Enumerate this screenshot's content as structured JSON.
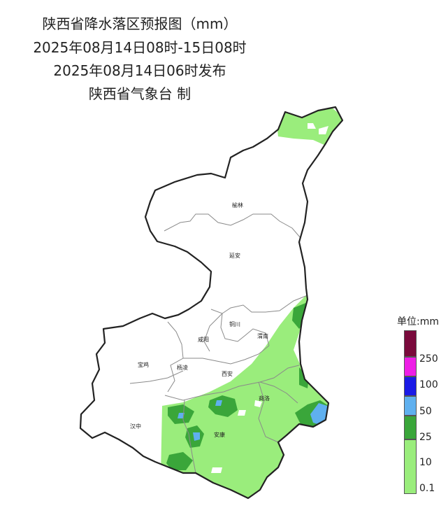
{
  "header": {
    "title": "陕西省降水落区预报图（mm）",
    "valid_period": "2025年08月14日08时-15日08时",
    "issue_time": "2025年08月14日06时发布",
    "issuer": "陕西省气象台 制"
  },
  "map": {
    "cities": [
      {
        "name": "榆林"
      },
      {
        "name": "延安"
      },
      {
        "name": "铜川"
      },
      {
        "name": "渭南"
      },
      {
        "name": "咸阳"
      },
      {
        "name": "宝鸡"
      },
      {
        "name": "杨凌"
      },
      {
        "name": "西安"
      },
      {
        "name": "商洛"
      },
      {
        "name": "汉中"
      },
      {
        "name": "安康"
      }
    ]
  },
  "legend": {
    "title": "单位:mm",
    "items": [
      {
        "label": "",
        "color": "#7a0a3c"
      },
      {
        "label": "250",
        "color": "#ee1ee6"
      },
      {
        "label": "100",
        "color": "#1a1ae6"
      },
      {
        "label": "50",
        "color": "#5fb0ef"
      },
      {
        "label": "25",
        "color": "#3aa63a"
      },
      {
        "label": "10",
        "color": "#9aed7c"
      },
      {
        "label": "0.1",
        "color": ""
      }
    ]
  }
}
